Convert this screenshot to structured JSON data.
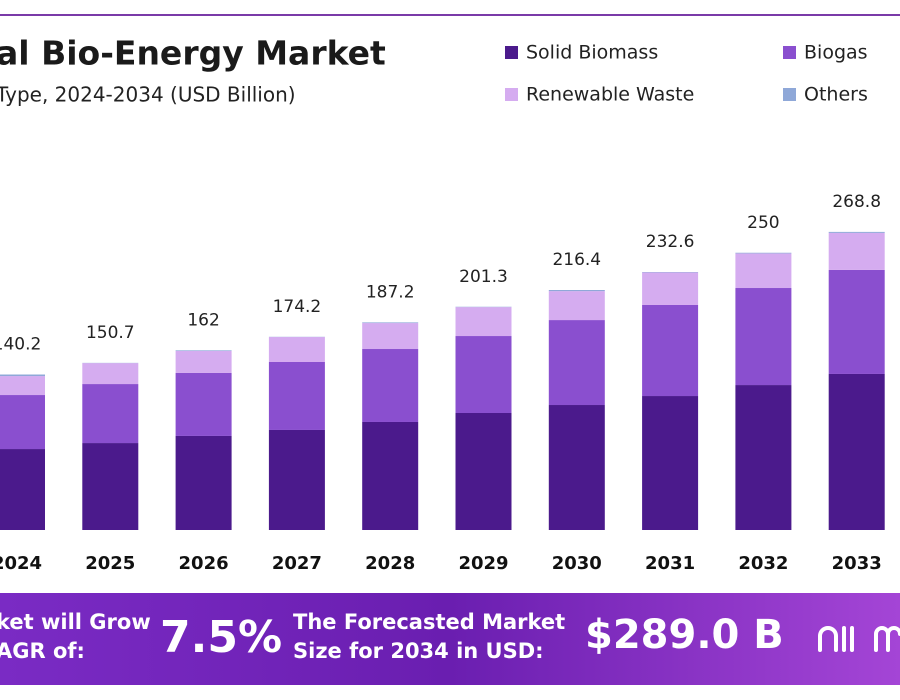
{
  "chart_data": {
    "type": "bar",
    "stacked": true,
    "title": "al Bio-Energy Market",
    "subtitle": "Type, 2024-2034 (USD Billion)",
    "categories": [
      "2024",
      "2025",
      "2026",
      "2027",
      "2028",
      "2029",
      "2030",
      "2031",
      "2032",
      "2033"
    ],
    "series": [
      {
        "name": "Solid Biomass",
        "color": "#4b1a8c",
        "values": [
          73.0,
          78.4,
          84.8,
          90.2,
          97.4,
          105.5,
          112.7,
          120.8,
          130.7,
          140.7
        ]
      },
      {
        "name": "Biogas",
        "color": "#8a4fcf",
        "values": [
          48.7,
          53.2,
          56.8,
          61.3,
          65.8,
          69.4,
          76.6,
          82.1,
          87.5,
          93.8
        ]
      },
      {
        "name": "Renewable Waste",
        "color": "#d5acf0",
        "values": [
          17.1,
          18.9,
          19.8,
          22.5,
          23.4,
          26.1,
          26.1,
          29.3,
          31.2,
          33.4
        ]
      },
      {
        "name": "Others",
        "color": "#8fa8d8",
        "values": [
          1.4,
          0.2,
          0.6,
          0.2,
          0.6,
          0.3,
          1.0,
          0.4,
          0.6,
          0.9
        ]
      }
    ],
    "totals": [
      140.2,
      150.7,
      162.0,
      174.2,
      187.2,
      201.3,
      216.4,
      232.6,
      250.0,
      268.8
    ]
  },
  "banner": {
    "left_lines": [
      "ket will Grow",
      "AGR of:"
    ],
    "cagr": "7.5%",
    "forecast_lines": [
      "The Forecasted Market",
      "Size for 2034 in USD:"
    ],
    "forecast_value": "$289.0 B"
  }
}
